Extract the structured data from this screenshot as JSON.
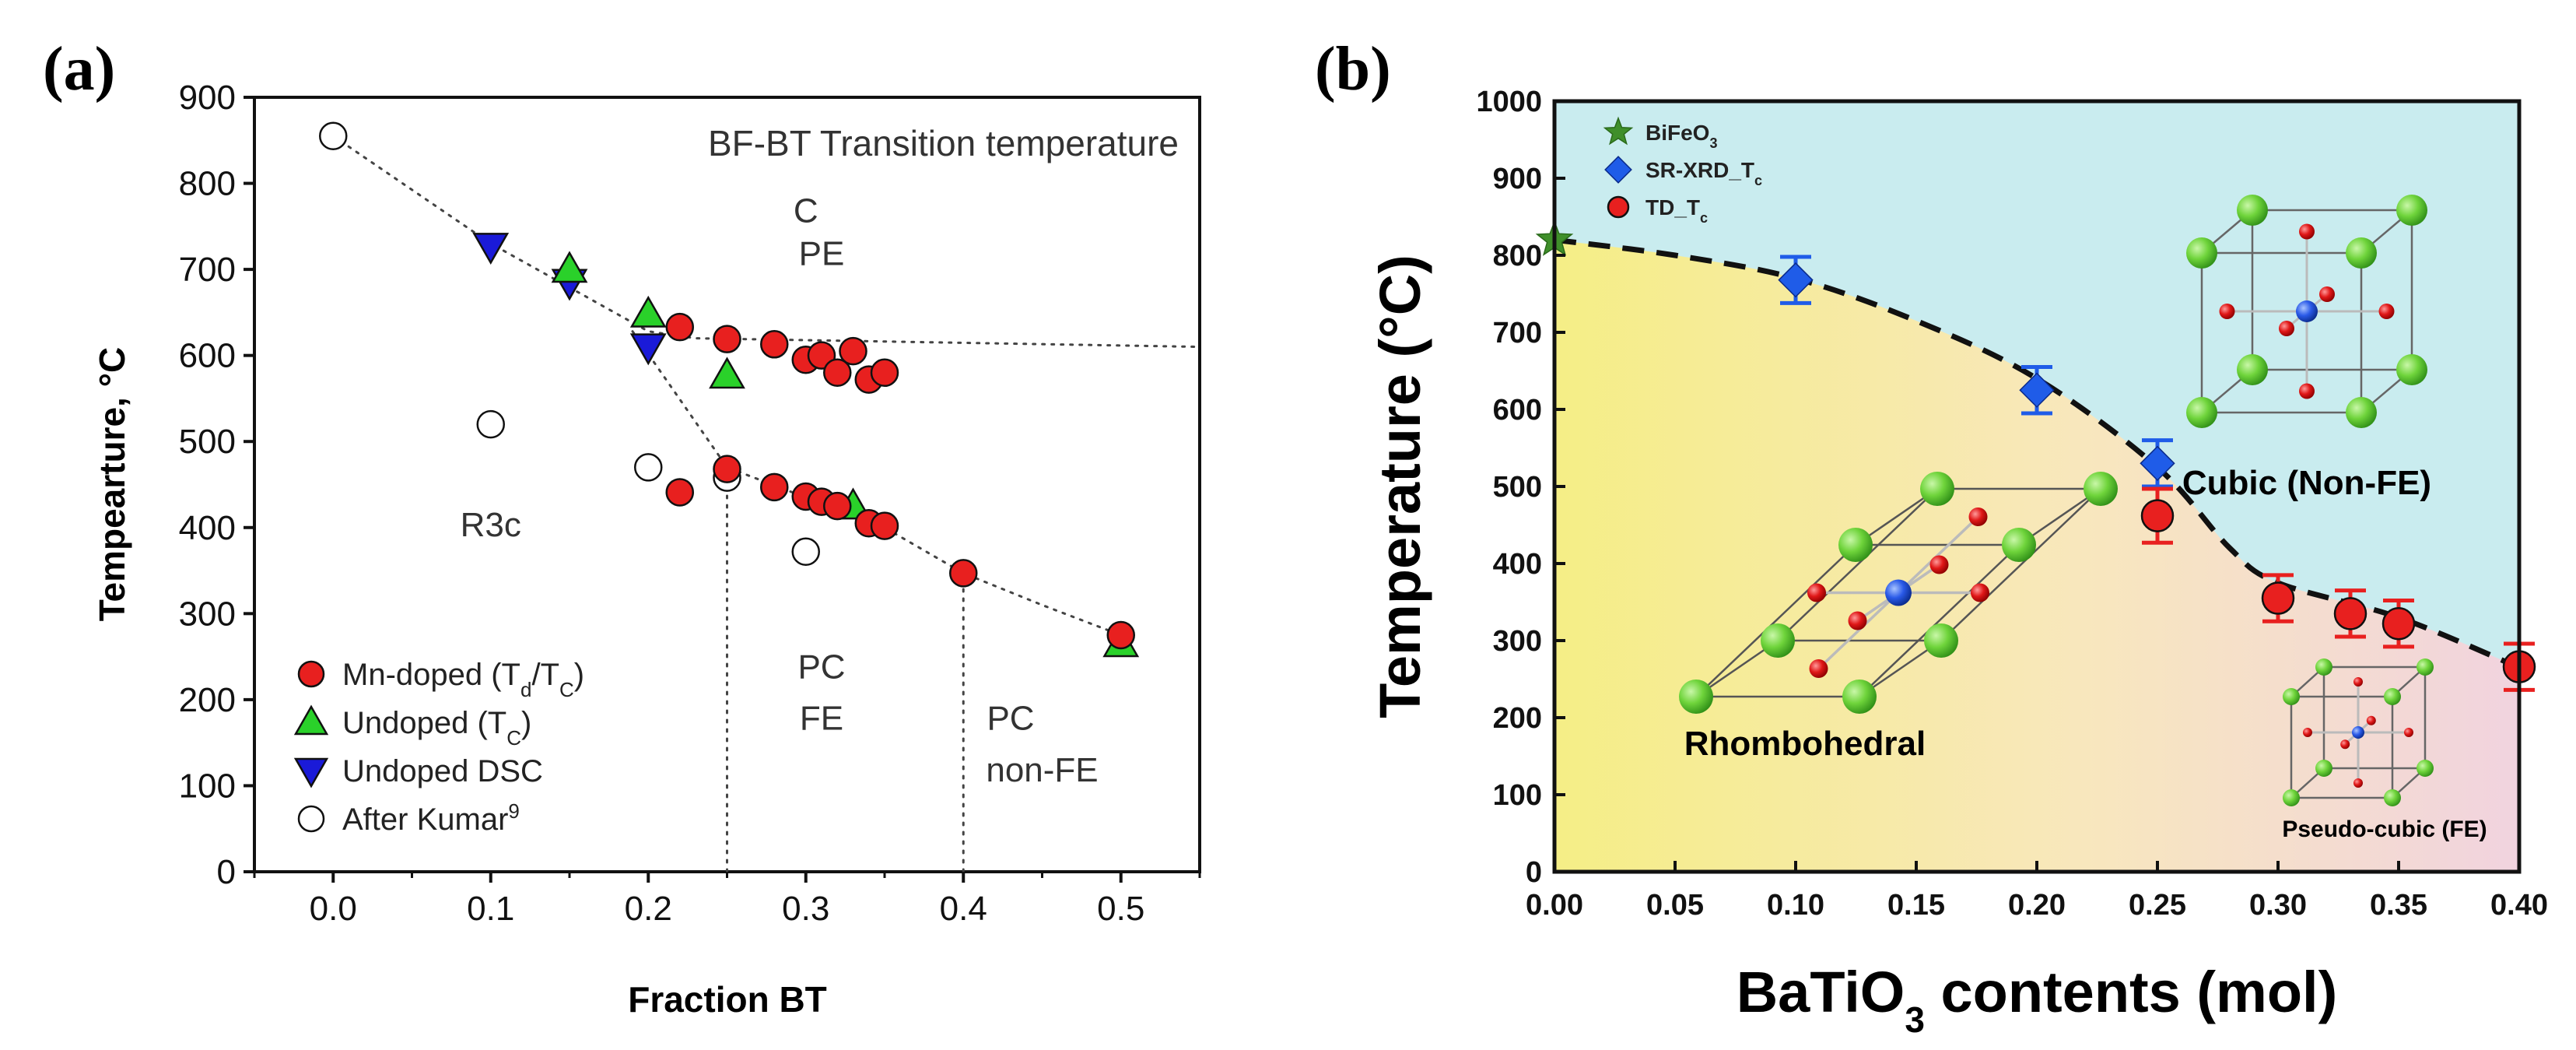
{
  "chart_data": [
    {
      "panel_label": "(a)",
      "type": "scatter",
      "title": "BF-BT Transition temperature",
      "xlabel": "Fraction BT",
      "ylabel": "Tempearture, °C",
      "xlim": [
        -0.05,
        0.55
      ],
      "ylim": [
        0,
        900
      ],
      "xticks": [
        "0.0",
        "0.1",
        "0.2",
        "0.3",
        "0.4",
        "0.5"
      ],
      "xtick_values": [
        0,
        0.1,
        0.2,
        0.3,
        0.4,
        0.5
      ],
      "yticks": [
        "0",
        "100",
        "200",
        "300",
        "400",
        "500",
        "600",
        "700",
        "800",
        "900"
      ],
      "ytick_values": [
        0,
        100,
        200,
        300,
        400,
        500,
        600,
        700,
        800,
        900
      ],
      "grid": false,
      "legend_position": "bottom-left",
      "series": [
        {
          "name": "Mn-doped (T_d/T_C)",
          "legend_main": "Mn-doped (T",
          "legend_sub1": "d",
          "legend_mid": "/T",
          "legend_sub2": "C",
          "legend_end": ")",
          "marker": "circle",
          "color": "#e8201f",
          "points": [
            [
              0.22,
              633
            ],
            [
              0.25,
              619
            ],
            [
              0.28,
              613
            ],
            [
              0.3,
              595
            ],
            [
              0.31,
              600
            ],
            [
              0.32,
              580
            ],
            [
              0.33,
              605
            ],
            [
              0.34,
              572
            ],
            [
              0.35,
              580
            ],
            [
              0.22,
              441
            ],
            [
              0.25,
              468
            ],
            [
              0.28,
              447
            ],
            [
              0.3,
              436
            ],
            [
              0.31,
              430
            ],
            [
              0.32,
              425
            ],
            [
              0.34,
              405
            ],
            [
              0.35,
              402
            ],
            [
              0.4,
              347
            ],
            [
              0.5,
              275
            ]
          ]
        },
        {
          "name": "Undoped (T_C)",
          "legend_main": "Undoped (T",
          "legend_sub1": "C",
          "legend_end": ")",
          "marker": "triangle-up",
          "color": "#2ad12a",
          "points": [
            [
              0.15,
              700
            ],
            [
              0.2,
              648
            ],
            [
              0.25,
              577
            ],
            [
              0.33,
              425
            ],
            [
              0.5,
              265
            ]
          ]
        },
        {
          "name": "Undoped DSC",
          "legend_main": "Undoped DSC",
          "marker": "triangle-down",
          "color": "#1a1ad8",
          "points": [
            [
              0.1,
              727
            ],
            [
              0.15,
              685
            ],
            [
              0.2,
              610
            ]
          ]
        },
        {
          "name": "After Kumar9",
          "legend_main": "After Kumar",
          "legend_sup": "9",
          "marker": "open-circle",
          "color": "#ffffff",
          "points": [
            [
              0.0,
              855
            ],
            [
              0.1,
              520
            ],
            [
              0.2,
              470
            ],
            [
              0.25,
              458
            ],
            [
              0.3,
              372
            ]
          ]
        }
      ],
      "guide_lines": {
        "upper_boundary": [
          [
            0.0,
            855
          ],
          [
            0.1,
            730
          ],
          [
            0.2,
            628
          ],
          [
            0.23,
            620
          ],
          [
            0.55,
            610
          ]
        ],
        "lower_boundary": [
          [
            0.19,
            628
          ],
          [
            0.25,
            470
          ],
          [
            0.3,
            435
          ],
          [
            0.35,
            400
          ],
          [
            0.4,
            347
          ],
          [
            0.45,
            310
          ],
          [
            0.5,
            275
          ]
        ],
        "vertical_lines": [
          [
            0.25,
            0,
            458
          ],
          [
            0.4,
            0,
            347
          ]
        ]
      },
      "annotations": [
        {
          "text": "C",
          "x": 0.3,
          "y": 755
        },
        {
          "text": "PE",
          "x": 0.31,
          "y": 705
        },
        {
          "text": "R3c",
          "x": 0.1,
          "y": 390
        },
        {
          "text": "PC",
          "x": 0.31,
          "y": 225
        },
        {
          "text": "FE",
          "x": 0.31,
          "y": 165
        },
        {
          "text": "PC",
          "x": 0.43,
          "y": 165
        },
        {
          "text": "non-FE",
          "x": 0.45,
          "y": 105
        }
      ]
    },
    {
      "panel_label": "(b)",
      "type": "scatter",
      "xlabel_main": "BaTiO",
      "xlabel_sub": "3",
      "xlabel_end": " contents (mol)",
      "xlabel": "BaTiO3 contents (mol)",
      "ylabel": "Temperature (°C)",
      "xlim": [
        0.0,
        0.4
      ],
      "ylim": [
        0,
        1000
      ],
      "xticks": [
        "0.00",
        "0.05",
        "0.10",
        "0.15",
        "0.20",
        "0.25",
        "0.30",
        "0.35",
        "0.40"
      ],
      "xtick_values": [
        0,
        0.05,
        0.1,
        0.15,
        0.2,
        0.25,
        0.3,
        0.35,
        0.4
      ],
      "yticks": [
        "0",
        "100",
        "200",
        "300",
        "400",
        "500",
        "600",
        "700",
        "800",
        "900",
        "1000"
      ],
      "ytick_values": [
        0,
        100,
        200,
        300,
        400,
        500,
        600,
        700,
        800,
        900,
        1000
      ],
      "grid": false,
      "legend_position": "top-left",
      "series": [
        {
          "name": "BiFeO3",
          "legend_main": "BiFeO",
          "legend_sub1": "3",
          "marker": "star",
          "color": "#3f8f2a",
          "points": [
            [
              0.0,
              820
            ]
          ]
        },
        {
          "name": "SR-XRD_Tc",
          "legend_main": "SR-XRD_T",
          "legend_sub1": "c",
          "marker": "diamond",
          "color": "#1f5ce8",
          "points": [
            [
              0.1,
              768
            ],
            [
              0.2,
              625
            ],
            [
              0.25,
              530
            ]
          ],
          "errors": [
            30,
            30,
            30
          ]
        },
        {
          "name": "TD_Tc",
          "legend_main": "TD_T",
          "legend_sub1": "c",
          "marker": "circle",
          "color": "#e8201f",
          "points": [
            [
              0.25,
              462
            ],
            [
              0.3,
              355
            ],
            [
              0.33,
              335
            ],
            [
              0.35,
              322
            ],
            [
              0.4,
              266
            ]
          ],
          "errors": [
            35,
            30,
            30,
            30,
            30
          ]
        }
      ],
      "boundary_curve": [
        [
          0,
          820
        ],
        [
          0.05,
          800
        ],
        [
          0.1,
          770
        ],
        [
          0.15,
          715
        ],
        [
          0.2,
          640
        ],
        [
          0.25,
          525
        ],
        [
          0.28,
          420
        ],
        [
          0.3,
          375
        ],
        [
          0.35,
          330
        ],
        [
          0.4,
          265
        ]
      ],
      "region_labels": {
        "cubic": "Cubic (Non-FE)",
        "rhombohedral": "Rhombohedral",
        "pseudo_cubic": "Pseudo-cubic (FE)"
      },
      "colors": {
        "cubic_bg": "#c9ecef",
        "rhombo_left": "#f5ee86",
        "rhombo_right": "#f3d9e0",
        "curve": "#111111"
      }
    }
  ]
}
